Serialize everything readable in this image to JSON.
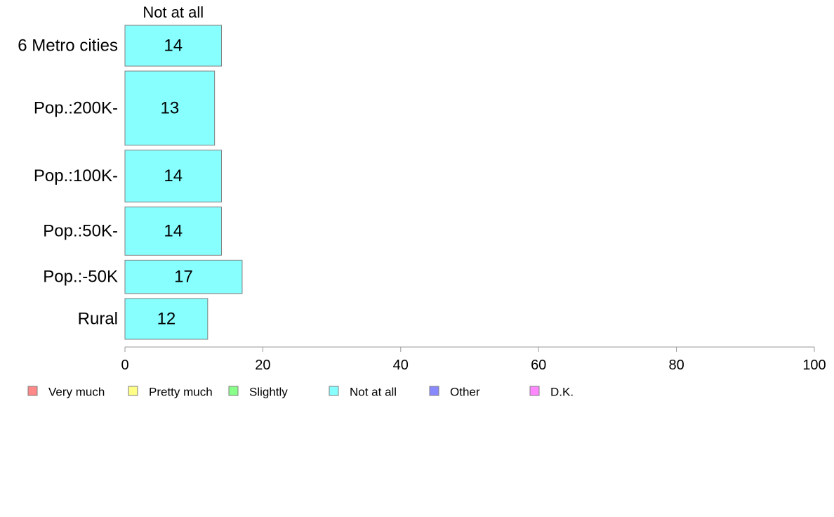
{
  "chart_data": {
    "type": "bar",
    "orientation": "horizontal",
    "stacked": true,
    "column_title": "Not at all",
    "categories": [
      "6 Metro cities",
      "Pop.:200K-",
      "Pop.:100K-",
      "Pop.:50K-",
      "Pop.:-50K",
      "Rural"
    ],
    "bar_weights": [
      1.1,
      2.0,
      1.4,
      1.3,
      0.9,
      1.1
    ],
    "series": [
      {
        "name": "Not at all",
        "color": "#88FFFF",
        "values": [
          14,
          13,
          14,
          14,
          17,
          12
        ]
      }
    ],
    "xlim": [
      0,
      100
    ],
    "xticks": [
      0,
      20,
      40,
      60,
      80,
      100
    ],
    "grid": false,
    "legend": {
      "placement": "bottom-left",
      "items": [
        {
          "label": "Very much",
          "color": "#FF8888"
        },
        {
          "label": "Pretty much",
          "color": "#FFFF88"
        },
        {
          "label": "Slightly",
          "color": "#88FF88"
        },
        {
          "label": "Not at all",
          "color": "#88FFFF"
        },
        {
          "label": "Other",
          "color": "#8888FF"
        },
        {
          "label": "D.K.",
          "color": "#FF88FF"
        }
      ]
    },
    "bar_edge_color": "#7f7f7f",
    "axis_color": "#999999"
  }
}
